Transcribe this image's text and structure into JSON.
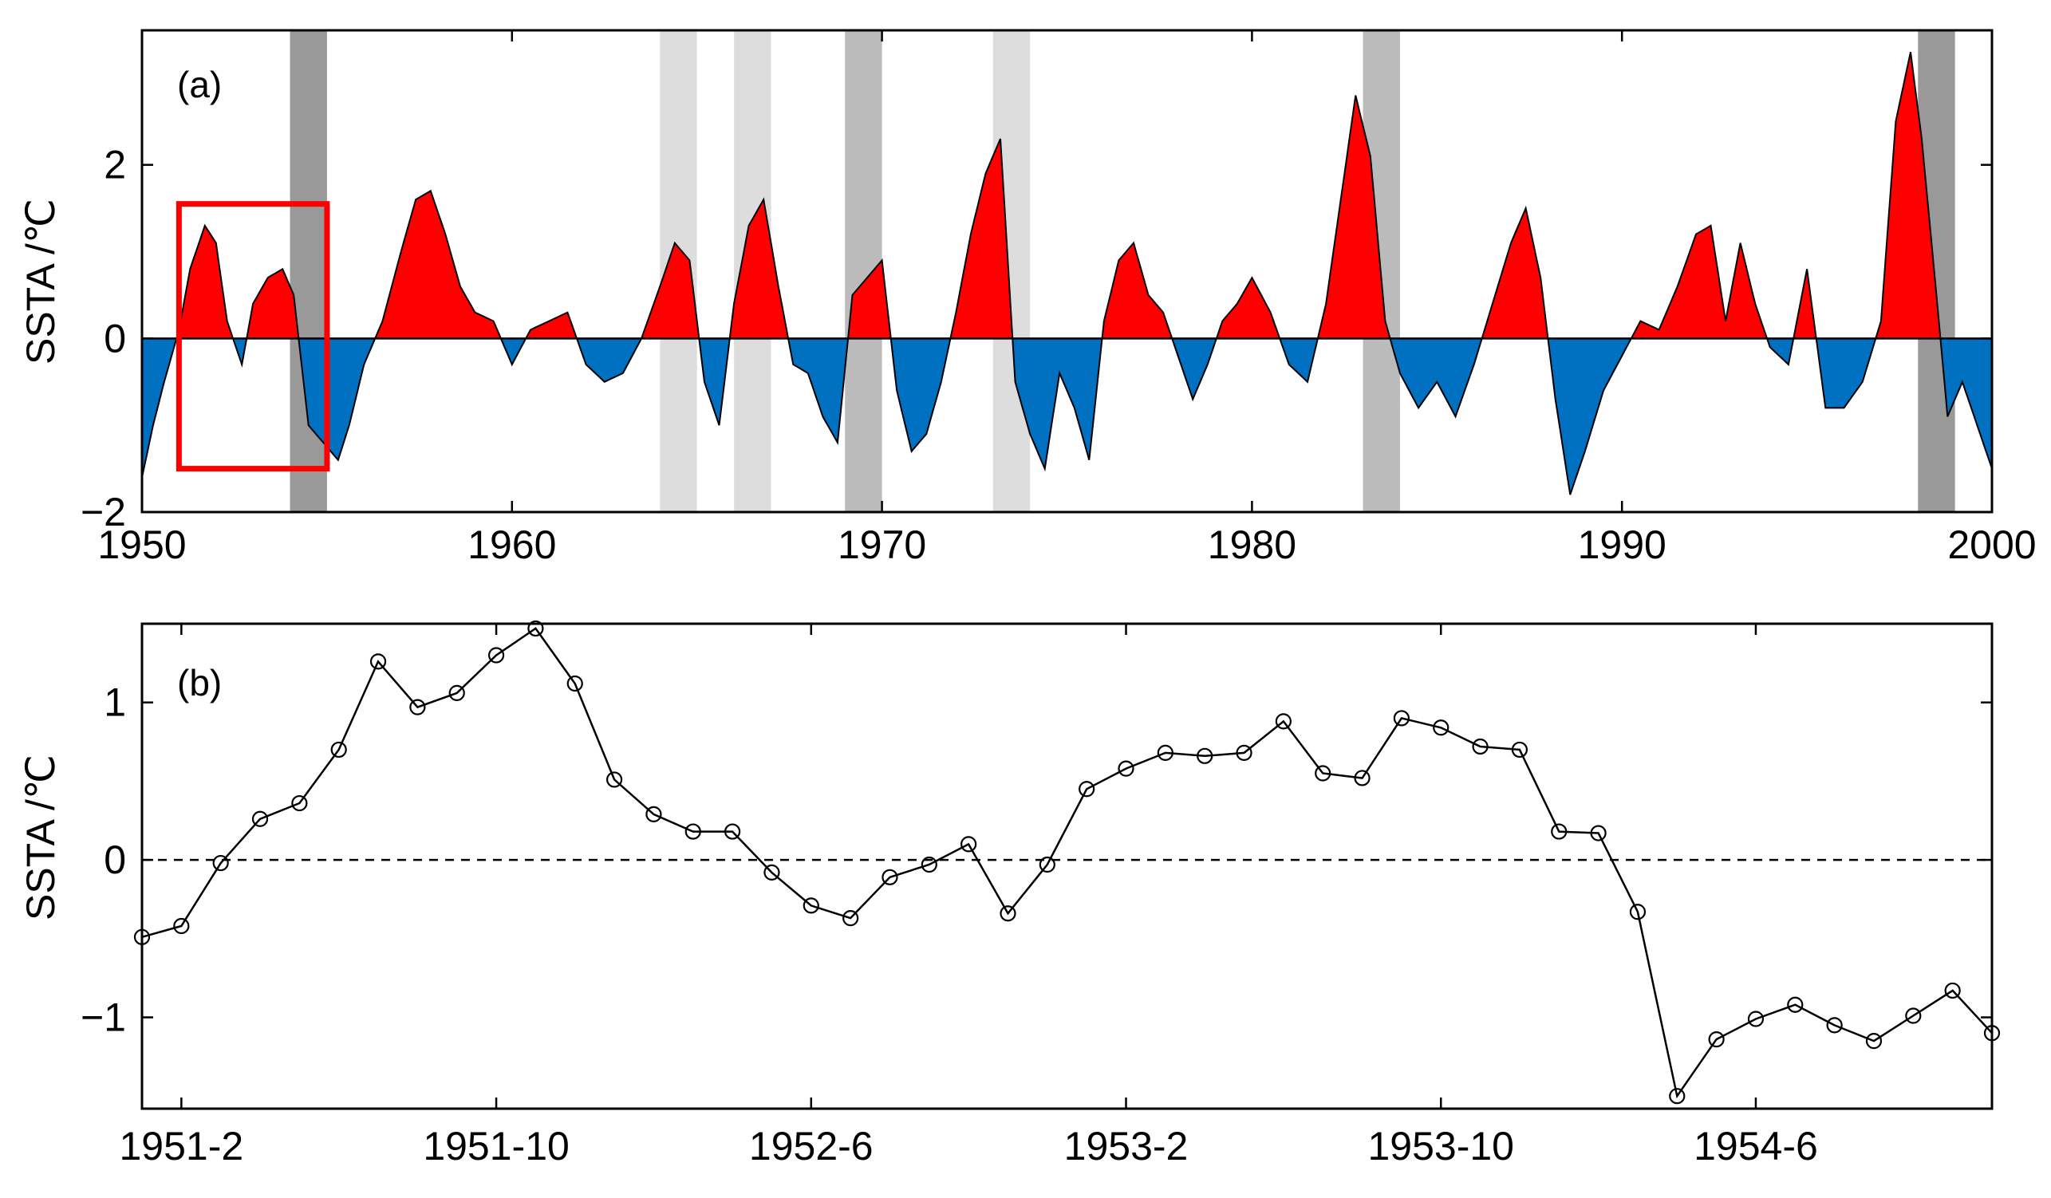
{
  "colors": {
    "positive_fill": "#ff0000",
    "negative_fill": "#0070c0",
    "highlight_box": "#ff0000",
    "band_dark": "#999999",
    "band_medium": "#bbbbbb",
    "band_light": "#dddddd",
    "line": "#000000"
  },
  "chart_data": [
    {
      "type": "area",
      "panel_label": "(a)",
      "xlabel": "",
      "ylabel": "SSTA /℃",
      "xlim": [
        1950,
        2000
      ],
      "ylim": [
        -2,
        3.55
      ],
      "xticks": [
        1950,
        1960,
        1970,
        1980,
        1990,
        2000
      ],
      "xtick_labels": [
        "1950",
        "1960",
        "1970",
        "1980",
        "1990",
        "2000"
      ],
      "yticks": [
        -2,
        0,
        2
      ],
      "ytick_labels": [
        "−2",
        "0",
        "2"
      ],
      "fill_positive": "red",
      "fill_negative": "blue",
      "series": [
        {
          "name": "SSTA",
          "x": [
            1950.0,
            1950.3,
            1950.6,
            1951.0,
            1951.3,
            1951.7,
            1952.0,
            1952.3,
            1952.7,
            1953.0,
            1953.4,
            1953.8,
            1954.1,
            1954.5,
            1954.9,
            1955.3,
            1955.6,
            1956.0,
            1956.5,
            1957.0,
            1957.4,
            1957.8,
            1958.2,
            1958.6,
            1959.0,
            1959.5,
            1960.0,
            1960.5,
            1961.0,
            1961.5,
            1962.0,
            1962.5,
            1963.0,
            1963.5,
            1964.0,
            1964.4,
            1964.8,
            1965.2,
            1965.6,
            1966.0,
            1966.4,
            1966.8,
            1967.2,
            1967.6,
            1968.0,
            1968.4,
            1968.8,
            1969.2,
            1969.6,
            1970.0,
            1970.4,
            1970.8,
            1971.2,
            1971.6,
            1972.0,
            1972.4,
            1972.8,
            1973.2,
            1973.6,
            1974.0,
            1974.4,
            1974.8,
            1975.2,
            1975.6,
            1976.0,
            1976.4,
            1976.8,
            1977.2,
            1977.6,
            1978.0,
            1978.4,
            1978.8,
            1979.2,
            1979.6,
            1980.0,
            1980.5,
            1981.0,
            1981.5,
            1982.0,
            1982.4,
            1982.8,
            1983.2,
            1983.6,
            1984.0,
            1984.5,
            1985.0,
            1985.5,
            1986.0,
            1986.5,
            1987.0,
            1987.4,
            1987.8,
            1988.2,
            1988.6,
            1989.0,
            1989.5,
            1990.0,
            1990.5,
            1991.0,
            1991.5,
            1992.0,
            1992.4,
            1992.8,
            1993.2,
            1993.6,
            1994.0,
            1994.5,
            1995.0,
            1995.5,
            1996.0,
            1996.5,
            1997.0,
            1997.4,
            1997.8,
            1998.1,
            1998.5,
            1998.8,
            1999.2,
            1999.6,
            2000.0
          ],
          "y": [
            -1.6,
            -1.0,
            -0.5,
            0.1,
            0.8,
            1.3,
            1.1,
            0.2,
            -0.3,
            0.4,
            0.7,
            0.8,
            0.5,
            -1.0,
            -1.2,
            -1.4,
            -1.0,
            -0.3,
            0.2,
            1.0,
            1.6,
            1.7,
            1.2,
            0.6,
            0.3,
            0.2,
            -0.3,
            0.1,
            0.2,
            0.3,
            -0.3,
            -0.5,
            -0.4,
            0.0,
            0.6,
            1.1,
            0.9,
            -0.5,
            -1.0,
            0.4,
            1.3,
            1.6,
            0.6,
            -0.3,
            -0.4,
            -0.9,
            -1.2,
            0.5,
            0.7,
            0.9,
            -0.6,
            -1.3,
            -1.1,
            -0.5,
            0.3,
            1.2,
            1.9,
            2.3,
            -0.5,
            -1.1,
            -1.5,
            -0.4,
            -0.8,
            -1.4,
            0.2,
            0.9,
            1.1,
            0.5,
            0.3,
            -0.2,
            -0.7,
            -0.3,
            0.2,
            0.4,
            0.7,
            0.3,
            -0.3,
            -0.5,
            0.4,
            1.6,
            2.8,
            2.1,
            0.2,
            -0.4,
            -0.8,
            -0.5,
            -0.9,
            -0.3,
            0.4,
            1.1,
            1.5,
            0.7,
            -0.7,
            -1.8,
            -1.3,
            -0.6,
            -0.2,
            0.2,
            0.1,
            0.6,
            1.2,
            1.3,
            0.2,
            1.1,
            0.4,
            -0.1,
            -0.3,
            0.8,
            -0.8,
            -0.8,
            -0.5,
            0.2,
            2.5,
            3.3,
            2.3,
            0.5,
            -0.9,
            -0.5,
            -1.0,
            -1.5
          ]
        }
      ],
      "shaded_bands": [
        {
          "start": 1954.0,
          "end": 1955.0,
          "shade": "dark"
        },
        {
          "start": 1964.0,
          "end": 1965.0,
          "shade": "light"
        },
        {
          "start": 1966.0,
          "end": 1967.0,
          "shade": "light"
        },
        {
          "start": 1969.0,
          "end": 1970.0,
          "shade": "medium"
        },
        {
          "start": 1973.0,
          "end": 1974.0,
          "shade": "light"
        },
        {
          "start": 1983.0,
          "end": 1984.0,
          "shade": "medium"
        },
        {
          "start": 1998.0,
          "end": 1999.0,
          "shade": "dark"
        }
      ],
      "highlight_box": {
        "x_start": 1951.0,
        "x_end": 1955.0,
        "y_start": -1.5,
        "y_end": 1.55
      }
    },
    {
      "type": "line",
      "panel_label": "(b)",
      "xlabel": "",
      "ylabel": "SSTA /℃",
      "xlim": [
        0,
        47
      ],
      "ylim": [
        -1.58,
        1.5
      ],
      "xticks": [
        1,
        9,
        17,
        25,
        33,
        41
      ],
      "xtick_labels": [
        "1951-2",
        "1951-10",
        "1952-6",
        "1953-2",
        "1953-10",
        "1954-6"
      ],
      "yticks": [
        -1,
        0,
        1
      ],
      "ytick_labels": [
        "−1",
        "0",
        "1"
      ],
      "zero_line": "dashed",
      "marker": "open-circle",
      "series": [
        {
          "name": "SSTA",
          "x": [
            0,
            1,
            2,
            3,
            4,
            5,
            6,
            7,
            8,
            9,
            10,
            11,
            12,
            13,
            14,
            15,
            16,
            17,
            18,
            19,
            20,
            21,
            22,
            23,
            24,
            25,
            26,
            27,
            28,
            29,
            30,
            31,
            32,
            33,
            34,
            35,
            36,
            37,
            38,
            39,
            40,
            41,
            42,
            43,
            44,
            45,
            46,
            47
          ],
          "y": [
            -0.49,
            -0.42,
            -0.02,
            0.26,
            0.36,
            0.7,
            1.26,
            0.97,
            1.06,
            1.3,
            1.47,
            1.12,
            0.51,
            0.29,
            0.18,
            0.18,
            -0.08,
            -0.29,
            -0.37,
            -0.11,
            -0.03,
            0.1,
            -0.34,
            -0.03,
            0.45,
            0.58,
            0.68,
            0.66,
            0.68,
            0.88,
            0.55,
            0.52,
            0.9,
            0.84,
            0.72,
            0.7,
            0.18,
            0.17,
            -0.33,
            -1.5,
            -1.14,
            -1.01,
            -0.92,
            -1.05,
            -1.15,
            -0.99,
            -0.83,
            -1.1
          ]
        }
      ]
    }
  ]
}
